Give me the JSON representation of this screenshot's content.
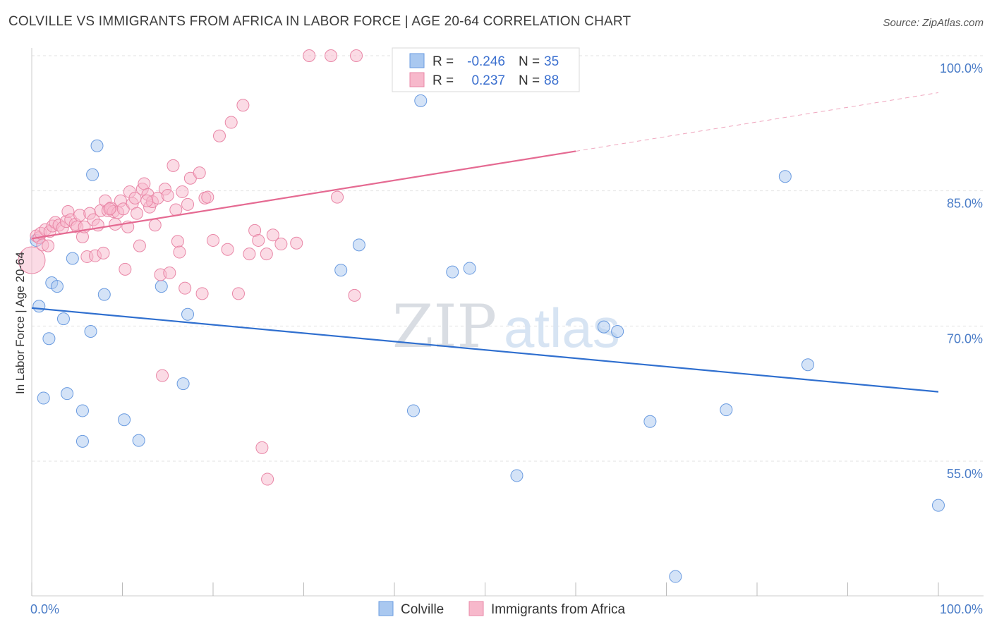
{
  "header": {
    "title": "COLVILLE VS IMMIGRANTS FROM AFRICA IN LABOR FORCE | AGE 20-64 CORRELATION CHART",
    "source": "Source: ZipAtlas.com"
  },
  "chart_data": {
    "type": "scatter",
    "title": "COLVILLE VS IMMIGRANTS FROM AFRICA IN LABOR FORCE | AGE 20-64 CORRELATION CHART",
    "xlabel": "",
    "ylabel": "In Labor Force | Age 20-64",
    "xlim": [
      0,
      100
    ],
    "ylim": [
      40,
      102
    ],
    "x_tick_labels": [
      "0.0%",
      "100.0%"
    ],
    "y_ticks": [
      55,
      70,
      85,
      100
    ],
    "y_tick_labels": [
      "55.0%",
      "70.0%",
      "85.0%",
      "100.0%"
    ],
    "grid": true,
    "watermark": "ZIPatlas",
    "legend": [
      {
        "name": "Colville",
        "R_label": "R =",
        "R": "-0.246",
        "N_label": "N =",
        "N": "35",
        "color": "#a9c8f0",
        "stroke": "#6a9be0"
      },
      {
        "name": "Immigrants from Africa",
        "R_label": "R =",
        "R": "0.237",
        "N_label": "N =",
        "N": "88",
        "color": "#f7b8cb",
        "stroke": "#e987a7"
      }
    ],
    "series": [
      {
        "name": "Colville",
        "color": "#a9c8f0",
        "stroke": "#6a9be0",
        "line_color": "#2f6fcf",
        "trend": {
          "x": [
            0,
            100
          ],
          "y": [
            72.0,
            62.7
          ]
        },
        "points": [
          [
            0.5,
            79.5
          ],
          [
            0.8,
            72.2
          ],
          [
            1.3,
            62.0
          ],
          [
            1.9,
            68.6
          ],
          [
            2.2,
            74.8
          ],
          [
            2.8,
            74.4
          ],
          [
            3.5,
            70.8
          ],
          [
            3.9,
            62.5
          ],
          [
            4.5,
            77.5
          ],
          [
            5.6,
            60.6
          ],
          [
            5.6,
            57.2
          ],
          [
            6.5,
            69.4
          ],
          [
            6.7,
            86.8
          ],
          [
            7.2,
            90.0
          ],
          [
            8.0,
            73.5
          ],
          [
            10.2,
            59.6
          ],
          [
            11.8,
            57.3
          ],
          [
            14.3,
            74.4
          ],
          [
            16.7,
            63.6
          ],
          [
            17.2,
            71.3
          ],
          [
            34.1,
            76.2
          ],
          [
            36.1,
            79.0
          ],
          [
            42.1,
            60.6
          ],
          [
            42.9,
            95.0
          ],
          [
            46.4,
            76.0
          ],
          [
            48.3,
            76.4
          ],
          [
            53.5,
            53.4
          ],
          [
            63.1,
            69.9
          ],
          [
            64.6,
            69.4
          ],
          [
            68.2,
            59.4
          ],
          [
            71.0,
            42.2
          ],
          [
            76.6,
            60.7
          ],
          [
            83.1,
            86.6
          ],
          [
            85.6,
            65.7
          ],
          [
            100.0,
            50.1
          ]
        ]
      },
      {
        "name": "Immigrants from Africa",
        "color": "#f7b8cb",
        "stroke": "#e987a7",
        "line_color": "#e56a92",
        "trend": {
          "x": [
            0,
            60
          ],
          "y": [
            79.7,
            89.4
          ]
        },
        "trend_dashed": {
          "x": [
            60,
            100
          ],
          "y": [
            89.4,
            95.9
          ]
        },
        "points": [
          [
            0.0,
            77.3
          ],
          [
            0.5,
            80.0
          ],
          [
            0.8,
            79.8
          ],
          [
            1.0,
            80.3
          ],
          [
            1.2,
            79.0
          ],
          [
            1.5,
            80.7
          ],
          [
            1.8,
            78.9
          ],
          [
            2.0,
            80.5
          ],
          [
            2.3,
            81.1
          ],
          [
            2.6,
            81.5
          ],
          [
            3.0,
            81.2
          ],
          [
            3.4,
            80.9
          ],
          [
            3.8,
            81.6
          ],
          [
            4.0,
            82.7
          ],
          [
            4.3,
            81.8
          ],
          [
            4.8,
            81.3
          ],
          [
            5.0,
            81.0
          ],
          [
            5.3,
            82.3
          ],
          [
            5.6,
            79.9
          ],
          [
            5.8,
            81.0
          ],
          [
            6.1,
            77.7
          ],
          [
            6.4,
            82.5
          ],
          [
            6.8,
            81.8
          ],
          [
            7.0,
            77.8
          ],
          [
            7.3,
            81.2
          ],
          [
            7.6,
            82.8
          ],
          [
            7.9,
            78.1
          ],
          [
            8.1,
            83.9
          ],
          [
            8.4,
            82.8
          ],
          [
            8.7,
            83.1
          ],
          [
            9.0,
            82.7
          ],
          [
            9.2,
            81.3
          ],
          [
            9.5,
            82.6
          ],
          [
            9.8,
            83.9
          ],
          [
            10.1,
            83.0
          ],
          [
            10.3,
            76.3
          ],
          [
            10.6,
            81.0
          ],
          [
            10.8,
            84.9
          ],
          [
            11.1,
            83.6
          ],
          [
            11.4,
            84.2
          ],
          [
            11.6,
            82.5
          ],
          [
            11.9,
            78.9
          ],
          [
            12.2,
            85.2
          ],
          [
            12.4,
            85.8
          ],
          [
            12.8,
            84.6
          ],
          [
            13.0,
            83.2
          ],
          [
            13.3,
            83.8
          ],
          [
            13.6,
            81.2
          ],
          [
            13.9,
            84.2
          ],
          [
            14.2,
            75.7
          ],
          [
            14.4,
            64.5
          ],
          [
            14.7,
            85.2
          ],
          [
            15.0,
            84.5
          ],
          [
            15.2,
            75.9
          ],
          [
            15.6,
            87.8
          ],
          [
            15.9,
            82.9
          ],
          [
            16.1,
            79.4
          ],
          [
            16.3,
            78.2
          ],
          [
            16.6,
            84.9
          ],
          [
            16.9,
            74.2
          ],
          [
            17.2,
            83.5
          ],
          [
            17.5,
            86.4
          ],
          [
            18.5,
            87.0
          ],
          [
            18.8,
            73.6
          ],
          [
            19.1,
            84.2
          ],
          [
            19.4,
            84.3
          ],
          [
            20.0,
            79.5
          ],
          [
            20.7,
            91.1
          ],
          [
            21.6,
            78.5
          ],
          [
            22.0,
            92.6
          ],
          [
            22.8,
            73.6
          ],
          [
            23.3,
            94.5
          ],
          [
            24.0,
            78.0
          ],
          [
            24.6,
            80.6
          ],
          [
            25.0,
            79.5
          ],
          [
            25.4,
            56.5
          ],
          [
            25.9,
            78.0
          ],
          [
            26.6,
            80.1
          ],
          [
            26.0,
            53.0
          ],
          [
            27.5,
            79.1
          ],
          [
            29.2,
            79.2
          ],
          [
            30.6,
            100.0
          ],
          [
            33.0,
            100.0
          ],
          [
            33.7,
            84.3
          ],
          [
            35.6,
            73.4
          ],
          [
            35.8,
            100.0
          ],
          [
            8.6,
            83.0
          ],
          [
            12.7,
            83.9
          ]
        ]
      }
    ]
  },
  "bottom_legend": [
    {
      "label": "Colville"
    },
    {
      "label": "Immigrants from Africa"
    }
  ]
}
